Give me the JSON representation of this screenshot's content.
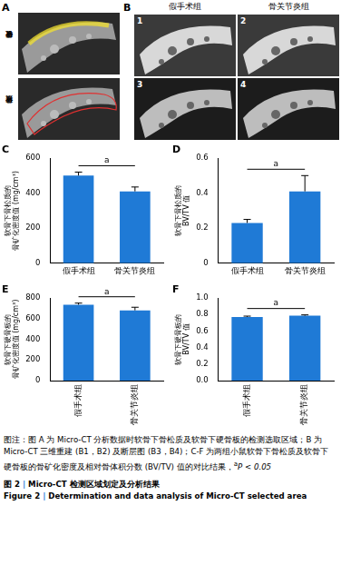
{
  "panel_a": {
    "letter": "A",
    "row_labels": [
      "软骨下硬骨板",
      "软骨下骨松质"
    ]
  },
  "panel_b": {
    "letter": "B",
    "columns": [
      "假手术组",
      "骨关节炎组"
    ],
    "image_numbers": [
      "1",
      "2",
      "3",
      "4"
    ]
  },
  "chart_data": [
    {
      "panel": "C",
      "type": "bar",
      "categories": [
        "假手术组",
        "骨关节炎组"
      ],
      "values": [
        500,
        410
      ],
      "errors": [
        20,
        25
      ],
      "color": "#1f7ad6",
      "y_label": [
        "软骨下骨松质的",
        "骨矿化密度值 (mg/cm³)"
      ],
      "ylim": [
        0,
        600
      ],
      "yticks": [
        0,
        200,
        400,
        600
      ],
      "grid": false,
      "significance": "a"
    },
    {
      "panel": "D",
      "type": "bar",
      "categories": [
        "假手术组",
        "骨关节炎组"
      ],
      "values": [
        0.23,
        0.41
      ],
      "errors": [
        0.02,
        0.09
      ],
      "color": "#1f7ad6",
      "y_label": [
        "软骨下骨松质的",
        "BV/TV 值"
      ],
      "ylim": [
        0,
        0.6
      ],
      "yticks": [
        0,
        0.2,
        0.4,
        0.6
      ],
      "grid": false,
      "significance": "a"
    },
    {
      "panel": "E",
      "type": "bar",
      "categories": [
        "假手术组",
        "骨关节炎组"
      ],
      "values": [
        735,
        680
      ],
      "errors": [
        15,
        30
      ],
      "color": "#1f7ad6",
      "y_label": [
        "软骨下硬骨板的",
        "骨矿化密度值 (mg/cm³)"
      ],
      "ylim": [
        0,
        800
      ],
      "yticks": [
        0,
        200,
        400,
        600,
        800
      ],
      "grid": false,
      "significance": "a"
    },
    {
      "panel": "F",
      "type": "bar",
      "categories": [
        "假手术组",
        "骨关节炎组"
      ],
      "values": [
        0.77,
        0.785
      ],
      "errors": [
        0.01,
        0.01
      ],
      "color": "#1f7ad6",
      "y_label": [
        "软骨下硬骨板的",
        "BV/TV 值"
      ],
      "ylim": [
        0,
        1
      ],
      "yticks": [
        {
          "value": 0,
          "label": "0.0"
        },
        0.2,
        0.4,
        0.6,
        0.8,
        {
          "value": 1,
          "label": "1.0"
        }
      ],
      "grid": false,
      "significance": "a"
    }
  ],
  "caption": {
    "text": "图注：图 A 为 Micro-CT 分析数据时软骨下骨松质及软骨下硬骨板的检测选取区域；B 为 Micro-CT 三维重建 (B1，B2) 及断层图 (B3，B4)；C-F 为两组小鼠软骨下骨松质及软骨下硬骨板的骨矿化密度及相对骨体积分数 (BV/TV) 值的对比结果，",
    "note_mark": "a",
    "note_text": "P < 0.05",
    "figure_number_cn": "图 2",
    "figure_title_cn": "Micro-CT 检测区域划定及分析结果",
    "figure_number_en": "Figure 2",
    "figure_title_en": "Determination and data analysis of Micro-CT selected area",
    "separator": "|"
  }
}
